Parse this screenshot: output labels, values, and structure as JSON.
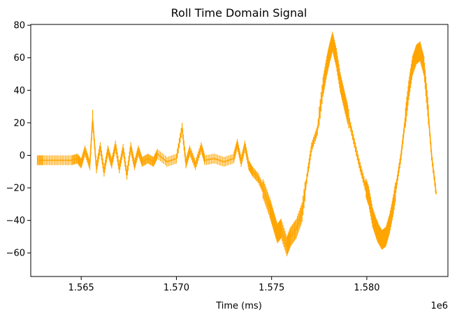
{
  "chart_data": {
    "type": "line",
    "title": "Roll Time Domain Signal",
    "xlabel": "Time (ms)",
    "ylabel": "",
    "x_offset_label": "1e6",
    "xlim": [
      1.56235,
      1.58426
    ],
    "ylim": [
      -74.5,
      80.5
    ],
    "x_ticks": [
      1.565,
      1.57,
      1.575,
      1.58
    ],
    "x_tick_labels": [
      "1.565",
      "1.570",
      "1.575",
      "1.580"
    ],
    "y_ticks": [
      -60,
      -40,
      -20,
      0,
      20,
      40,
      60,
      80
    ],
    "y_tick_labels": [
      "−60",
      "−40",
      "−20",
      "0",
      "20",
      "40",
      "60",
      "80"
    ],
    "grid": false,
    "legend": "none",
    "series": [
      {
        "color": "#FFA500",
        "x": [
          1.5627,
          1.563,
          1.5635,
          1.564,
          1.5645,
          1.5648,
          1.565,
          1.5652,
          1.56545,
          1.5656,
          1.5658,
          1.566,
          1.5662,
          1.5664,
          1.5666,
          1.5668,
          1.567,
          1.5672,
          1.5674,
          1.5676,
          1.5678,
          1.568,
          1.5682,
          1.5685,
          1.5688,
          1.569,
          1.5695,
          1.57,
          1.5703,
          1.5705,
          1.5707,
          1.571,
          1.5713,
          1.5715,
          1.572,
          1.5725,
          1.573,
          1.5732,
          1.5734,
          1.5736,
          1.5738,
          1.574,
          1.5743,
          1.5746,
          1.5749,
          1.5751,
          1.5753,
          1.5755,
          1.5758,
          1.576,
          1.5763,
          1.5766,
          1.5769,
          1.5771,
          1.5774,
          1.5777,
          1.5779,
          1.57805,
          1.5782,
          1.5784,
          1.5786,
          1.5788,
          1.579,
          1.5793,
          1.5796,
          1.5799,
          1.5801,
          1.5803,
          1.5805,
          1.5806,
          1.5808,
          1.581,
          1.5812,
          1.5814,
          1.5816,
          1.5818,
          1.582,
          1.5822,
          1.5824,
          1.5826,
          1.5828,
          1.583,
          1.5832,
          1.5834,
          1.58365
        ],
        "y": [
          -3,
          -3,
          -3,
          -3,
          -3,
          -2,
          -5,
          3,
          -6,
          22,
          -8,
          5,
          -10,
          3,
          -5,
          6,
          -8,
          4,
          -12,
          5,
          -6,
          3,
          -4,
          -2,
          -4,
          1,
          -4,
          -2,
          17,
          -5,
          3,
          -6,
          5,
          -3,
          -2,
          -4,
          -2,
          7,
          -4,
          6,
          -6,
          -10,
          -14,
          -22,
          -32,
          -40,
          -48,
          -45,
          -56,
          -50,
          -45,
          -35,
          -10,
          5,
          15,
          42,
          55,
          63,
          70,
          60,
          45,
          35,
          25,
          10,
          -5,
          -18,
          -25,
          -38,
          -45,
          -48,
          -52,
          -50,
          -42,
          -30,
          -15,
          0,
          20,
          40,
          55,
          62,
          64,
          55,
          30,
          0,
          -24
        ]
      }
    ]
  }
}
